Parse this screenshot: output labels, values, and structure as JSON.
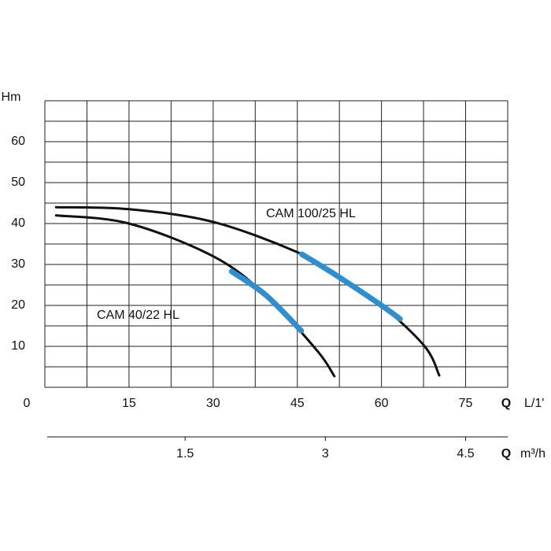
{
  "chart_data": {
    "type": "line",
    "y_axis_label": "Hm",
    "x_axis_label": "Q",
    "x_unit": "L/1'",
    "x2_axis_label": "Q",
    "x2_unit": "m³/h",
    "xlim": [
      0,
      82.5
    ],
    "xticks": [
      0,
      15,
      30,
      45,
      60,
      75
    ],
    "xgrid": [
      0,
      7.5,
      15,
      22.5,
      30,
      37.5,
      45,
      52.5,
      60,
      67.5,
      75,
      82.5
    ],
    "ylim": [
      0,
      70
    ],
    "yticks": [
      10,
      20,
      30,
      40,
      50,
      60
    ],
    "ygrid": [
      0,
      5,
      10,
      15,
      20,
      25,
      30,
      35,
      40,
      45,
      50,
      55,
      60,
      65,
      70
    ],
    "x2lim": [
      0,
      4.95
    ],
    "x2ticks": [
      1.5,
      3,
      4.5
    ],
    "series": [
      {
        "name": "CAM 100/25 HL",
        "color": "#111111",
        "x": [
          2,
          15,
          30,
          45,
          52,
          60,
          67.7,
          70.3
        ],
        "values": [
          44,
          43.5,
          40.4,
          33,
          27.3,
          20,
          10,
          2.9
        ],
        "bep": {
          "color": "#2e8fd0",
          "x": [
            45.8,
            52,
            60,
            63.3
          ],
          "values": [
            32.5,
            27.3,
            20,
            16.7
          ]
        }
      },
      {
        "name": "CAM 40/22 HL",
        "color": "#111111",
        "x": [
          2,
          15,
          30,
          39.4,
          48.5,
          51.6
        ],
        "values": [
          42,
          40,
          32,
          22.5,
          9,
          2.7
        ],
        "bep": {
          "color": "#2e8fd0",
          "x": [
            33.3,
            39.4,
            45.7
          ],
          "values": [
            28.3,
            22.5,
            13.8
          ]
        }
      }
    ]
  }
}
